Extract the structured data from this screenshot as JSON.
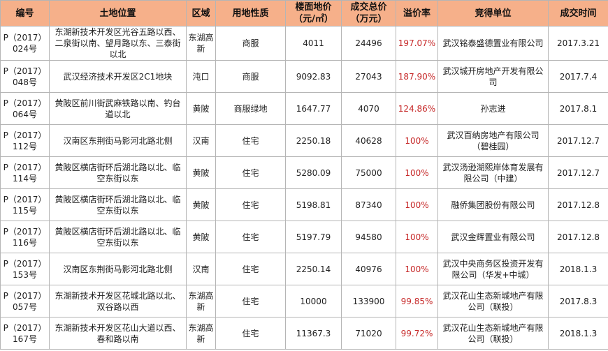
{
  "headers": [
    "编号",
    "土地位置",
    "区域",
    "用地性质",
    "楼面地价（元/㎡）",
    "成交总价（万元）",
    "溢价率",
    "竞得单位",
    "成交时间"
  ],
  "rows": [
    {
      "code": "P（2017）024号",
      "location": "东湖新技术开发区光谷五路以西、二泉街以南、望月路以东、三泰街以北",
      "district": "东湖高新",
      "use": "商服",
      "floor_price": "4011",
      "total_price": "24496",
      "premium": "197.07%",
      "buyer": "武汉铭泰盛德置业有限公司",
      "date": "2017.3.21"
    },
    {
      "code": "P（2017）048号",
      "location": "武汉经济技术开发区2C1地块",
      "district": "沌口",
      "use": "商服",
      "floor_price": "9092.83",
      "total_price": "27043",
      "premium": "187.90%",
      "buyer": "武汉城开房地产开发有限公司",
      "date": "2017.7.4"
    },
    {
      "code": "P（2017）064号",
      "location": "黄陂区前川街武麻铁路以南、钓台道以北",
      "district": "黄陂",
      "use": "商服绿地",
      "floor_price": "1647.77",
      "total_price": "4070",
      "premium": "124.86%",
      "buyer": "孙志进",
      "date": "2017.8.1"
    },
    {
      "code": "P（2017）112号",
      "location": "汉南区东荆街马影河北路北侧",
      "district": "汉南",
      "use": "住宅",
      "floor_price": "2250.18",
      "total_price": "40628",
      "premium": "100%",
      "buyer": "武汉百纳房地产有限公司（碧桂园）",
      "date": "2017.12.7"
    },
    {
      "code": "P（2017）114号",
      "location": "黄陂区横店街环后湖北路以北、临空东街以东",
      "district": "黄陂",
      "use": "住宅",
      "floor_price": "5280.09",
      "total_price": "75000",
      "premium": "100%",
      "buyer": "武汉汤逊湖熙岸体育发展有限公司（中建）",
      "date": "2017.12.7"
    },
    {
      "code": "P（2017）115号",
      "location": "黄陂区横店街环后湖北路以北、临空东街以东",
      "district": "黄陂",
      "use": "住宅",
      "floor_price": "5198.81",
      "total_price": "87340",
      "premium": "100%",
      "buyer": "融侨集团股份有限公司",
      "date": "2017.12.8"
    },
    {
      "code": "P（2017）116号",
      "location": "黄陂区横店街环后湖北路以北、临空东街以东",
      "district": "黄陂",
      "use": "住宅",
      "floor_price": "5197.79",
      "total_price": "94580",
      "premium": "100%",
      "buyer": "武汉金辉置业有限公司",
      "date": "2017.12.8"
    },
    {
      "code": "P（2017）153号",
      "location": "汉南区东荆街马影河北路北侧",
      "district": "汉南",
      "use": "住宅",
      "floor_price": "2250.14",
      "total_price": "40976",
      "premium": "100%",
      "buyer": "武汉中央商务区投资开发有限公司（华发+中城）",
      "date": "2018.1.3"
    },
    {
      "code": "P（2017）057号",
      "location": "东湖新技术开发区花城北路以北、双谷路以西",
      "district": "东湖高新",
      "use": "住宅",
      "floor_price": "10000",
      "total_price": "133900",
      "premium": "99.85%",
      "buyer": "武汉花山生态新城地产有限公司（联投）",
      "date": "2017.8.3"
    },
    {
      "code": "P（2017）167号",
      "location": "东湖新技术开发区花山大道以西、春和路以南",
      "district": "东湖高新",
      "use": "住宅",
      "floor_price": "11367.3",
      "total_price": "71020",
      "premium": "99.72%",
      "buyer": "武汉花山生态新城地产有限公司（联投）",
      "date": "2018.1.3"
    }
  ]
}
